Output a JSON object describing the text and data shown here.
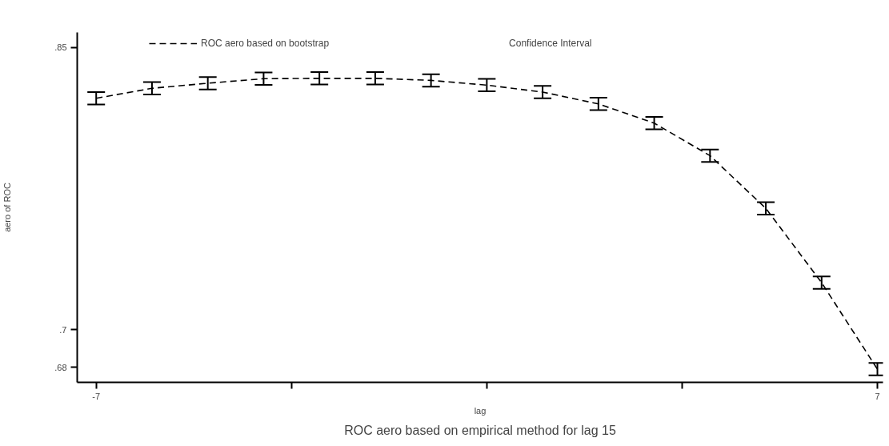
{
  "chart_data": {
    "type": "line",
    "title": "ROC aero based on empirical method for lag 15",
    "xlabel": "lag",
    "ylabel": "aero of ROC",
    "x": [
      -7,
      -6,
      -5,
      -4,
      -3,
      -2,
      -1,
      0,
      1,
      2,
      3,
      4,
      5,
      6,
      7
    ],
    "series": [
      {
        "name": "ROC aero based on bootstrap",
        "color": "#000000",
        "line_style": "dashed",
        "values": [
          0.823,
          0.8283,
          0.831,
          0.8334,
          0.8336,
          0.8336,
          0.8325,
          0.83,
          0.8263,
          0.82,
          0.8098,
          0.7925,
          0.7645,
          0.725,
          0.679
        ],
        "errors": [
          0.0033,
          0.0033,
          0.0033,
          0.0033,
          0.0033,
          0.0033,
          0.0033,
          0.0033,
          0.0033,
          0.0033,
          0.0033,
          0.0033,
          0.0033,
          0.0033,
          0.0033
        ]
      }
    ],
    "annotations": [
      "Confidence Interval"
    ],
    "xlim": [
      -7.34,
      7.1
    ],
    "ylim": [
      0.672,
      0.858
    ],
    "xticks": [
      -7,
      {
        "value": -3.5,
        "label": null
      },
      {
        "value": 0,
        "label": null
      },
      {
        "value": 3.5,
        "label": null
      },
      7
    ],
    "yticks": [
      {
        "value": 0.68,
        "label": ".68"
      },
      {
        "value": 0.7,
        "label": ".7"
      },
      {
        "value": 0.85,
        "label": ".85"
      }
    ],
    "grid": false,
    "legend": "top"
  }
}
